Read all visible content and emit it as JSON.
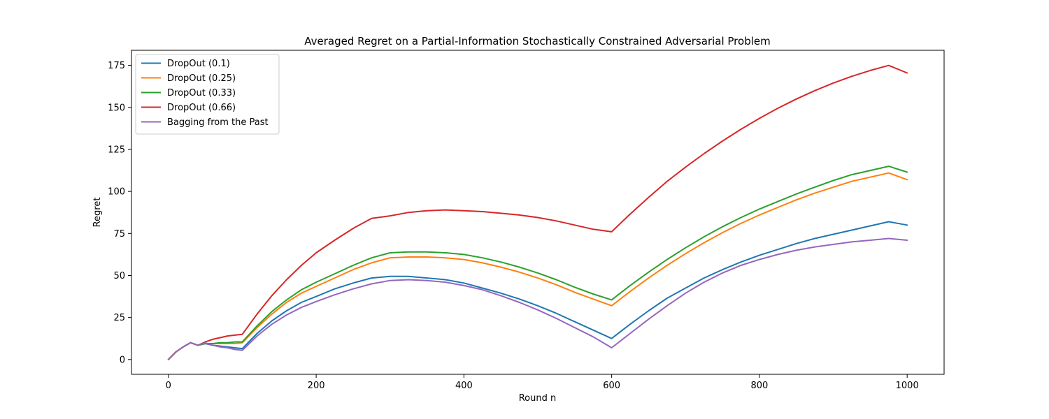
{
  "chart_data": {
    "type": "line",
    "title": "Averaged Regret on a Partial-Information Stochastically Constrained Adversarial Problem",
    "xlabel": "Round n",
    "ylabel": "Regret",
    "xlim": [
      -50,
      1050
    ],
    "ylim": [
      -8.8,
      184
    ],
    "xticks": [
      0,
      200,
      400,
      600,
      800,
      1000
    ],
    "yticks": [
      0,
      25,
      50,
      75,
      100,
      125,
      150,
      175
    ],
    "grid": false,
    "legend_position": "upper left",
    "x": [
      0,
      10,
      20,
      30,
      40,
      50,
      60,
      70,
      80,
      90,
      100,
      120,
      140,
      160,
      180,
      200,
      225,
      250,
      275,
      300,
      325,
      350,
      375,
      400,
      425,
      450,
      475,
      500,
      525,
      550,
      575,
      600,
      625,
      650,
      675,
      700,
      725,
      750,
      775,
      800,
      825,
      850,
      875,
      900,
      925,
      950,
      975,
      1000
    ],
    "series": [
      {
        "name": "DropOut (0.1)",
        "color": "#1f77b4",
        "values": [
          0,
          4.5,
          7.5,
          10,
          8.5,
          9.5,
          8.5,
          8,
          7.5,
          7,
          6.5,
          15.5,
          23,
          29,
          34,
          37.5,
          42,
          45.5,
          48.5,
          49.5,
          49.5,
          48.5,
          47.5,
          45.5,
          42.5,
          39.5,
          36,
          32,
          27.5,
          22.5,
          17.5,
          12.5,
          21,
          29,
          36.5,
          42.5,
          48.5,
          53.5,
          58,
          62,
          65.5,
          69,
          72,
          74.5,
          77,
          79.5,
          82,
          80
        ]
      },
      {
        "name": "DropOut (0.25)",
        "color": "#ff7f0e",
        "values": [
          0,
          4.5,
          7.5,
          10,
          8.5,
          9.5,
          9.5,
          9.5,
          9.5,
          9.5,
          10,
          19,
          27,
          34,
          39.5,
          43.5,
          48.5,
          53.5,
          57.5,
          60.5,
          61,
          61,
          60.5,
          59.5,
          57.5,
          55,
          52,
          48.5,
          44.5,
          40,
          36,
          32,
          40.5,
          48.5,
          56,
          63,
          69.5,
          75.5,
          81,
          86,
          90.5,
          95,
          99,
          102.5,
          106,
          108.5,
          111,
          107
        ]
      },
      {
        "name": "DropOut (0.33)",
        "color": "#2ca02c",
        "values": [
          0,
          4.5,
          7.5,
          10,
          8.5,
          9.5,
          9.5,
          10,
          10,
          10.5,
          10.5,
          20,
          28.5,
          35.5,
          41.5,
          46,
          51,
          56,
          60.5,
          63.5,
          64,
          64,
          63.5,
          62.5,
          60.5,
          58,
          55,
          51.5,
          47.5,
          43,
          39,
          35.5,
          44,
          52,
          59.5,
          66.5,
          73,
          79,
          84.5,
          89.5,
          94,
          98.5,
          102.5,
          106.5,
          110,
          112.5,
          115,
          111.5
        ]
      },
      {
        "name": "DropOut (0.66)",
        "color": "#d62728",
        "values": [
          0,
          4.5,
          7.5,
          10,
          8.5,
          10.5,
          12,
          13,
          14,
          14.5,
          15,
          27,
          38,
          47.5,
          56,
          63.5,
          71,
          78,
          84,
          85.5,
          87.5,
          88.5,
          89,
          88.5,
          88,
          87,
          86,
          84.5,
          82.5,
          80,
          77.5,
          76,
          86.5,
          96.5,
          106,
          114.5,
          122.5,
          130,
          137,
          143.5,
          149.5,
          155,
          160,
          164.5,
          168.5,
          172,
          175,
          170.5
        ]
      },
      {
        "name": "Bagging from the Past",
        "color": "#9467bd",
        "values": [
          0,
          4.5,
          7.5,
          10,
          8.5,
          10,
          8.5,
          7.5,
          7,
          6,
          5.5,
          14,
          21,
          26.5,
          31,
          34.5,
          38.5,
          42,
          45,
          47,
          47.5,
          47,
          46,
          44,
          41.5,
          38,
          34,
          29.5,
          24.5,
          19,
          13.5,
          7,
          15.5,
          24,
          32,
          39.5,
          46,
          51.5,
          56,
          59.5,
          62.5,
          65,
          67,
          68.5,
          70,
          71,
          72,
          71
        ]
      }
    ]
  }
}
